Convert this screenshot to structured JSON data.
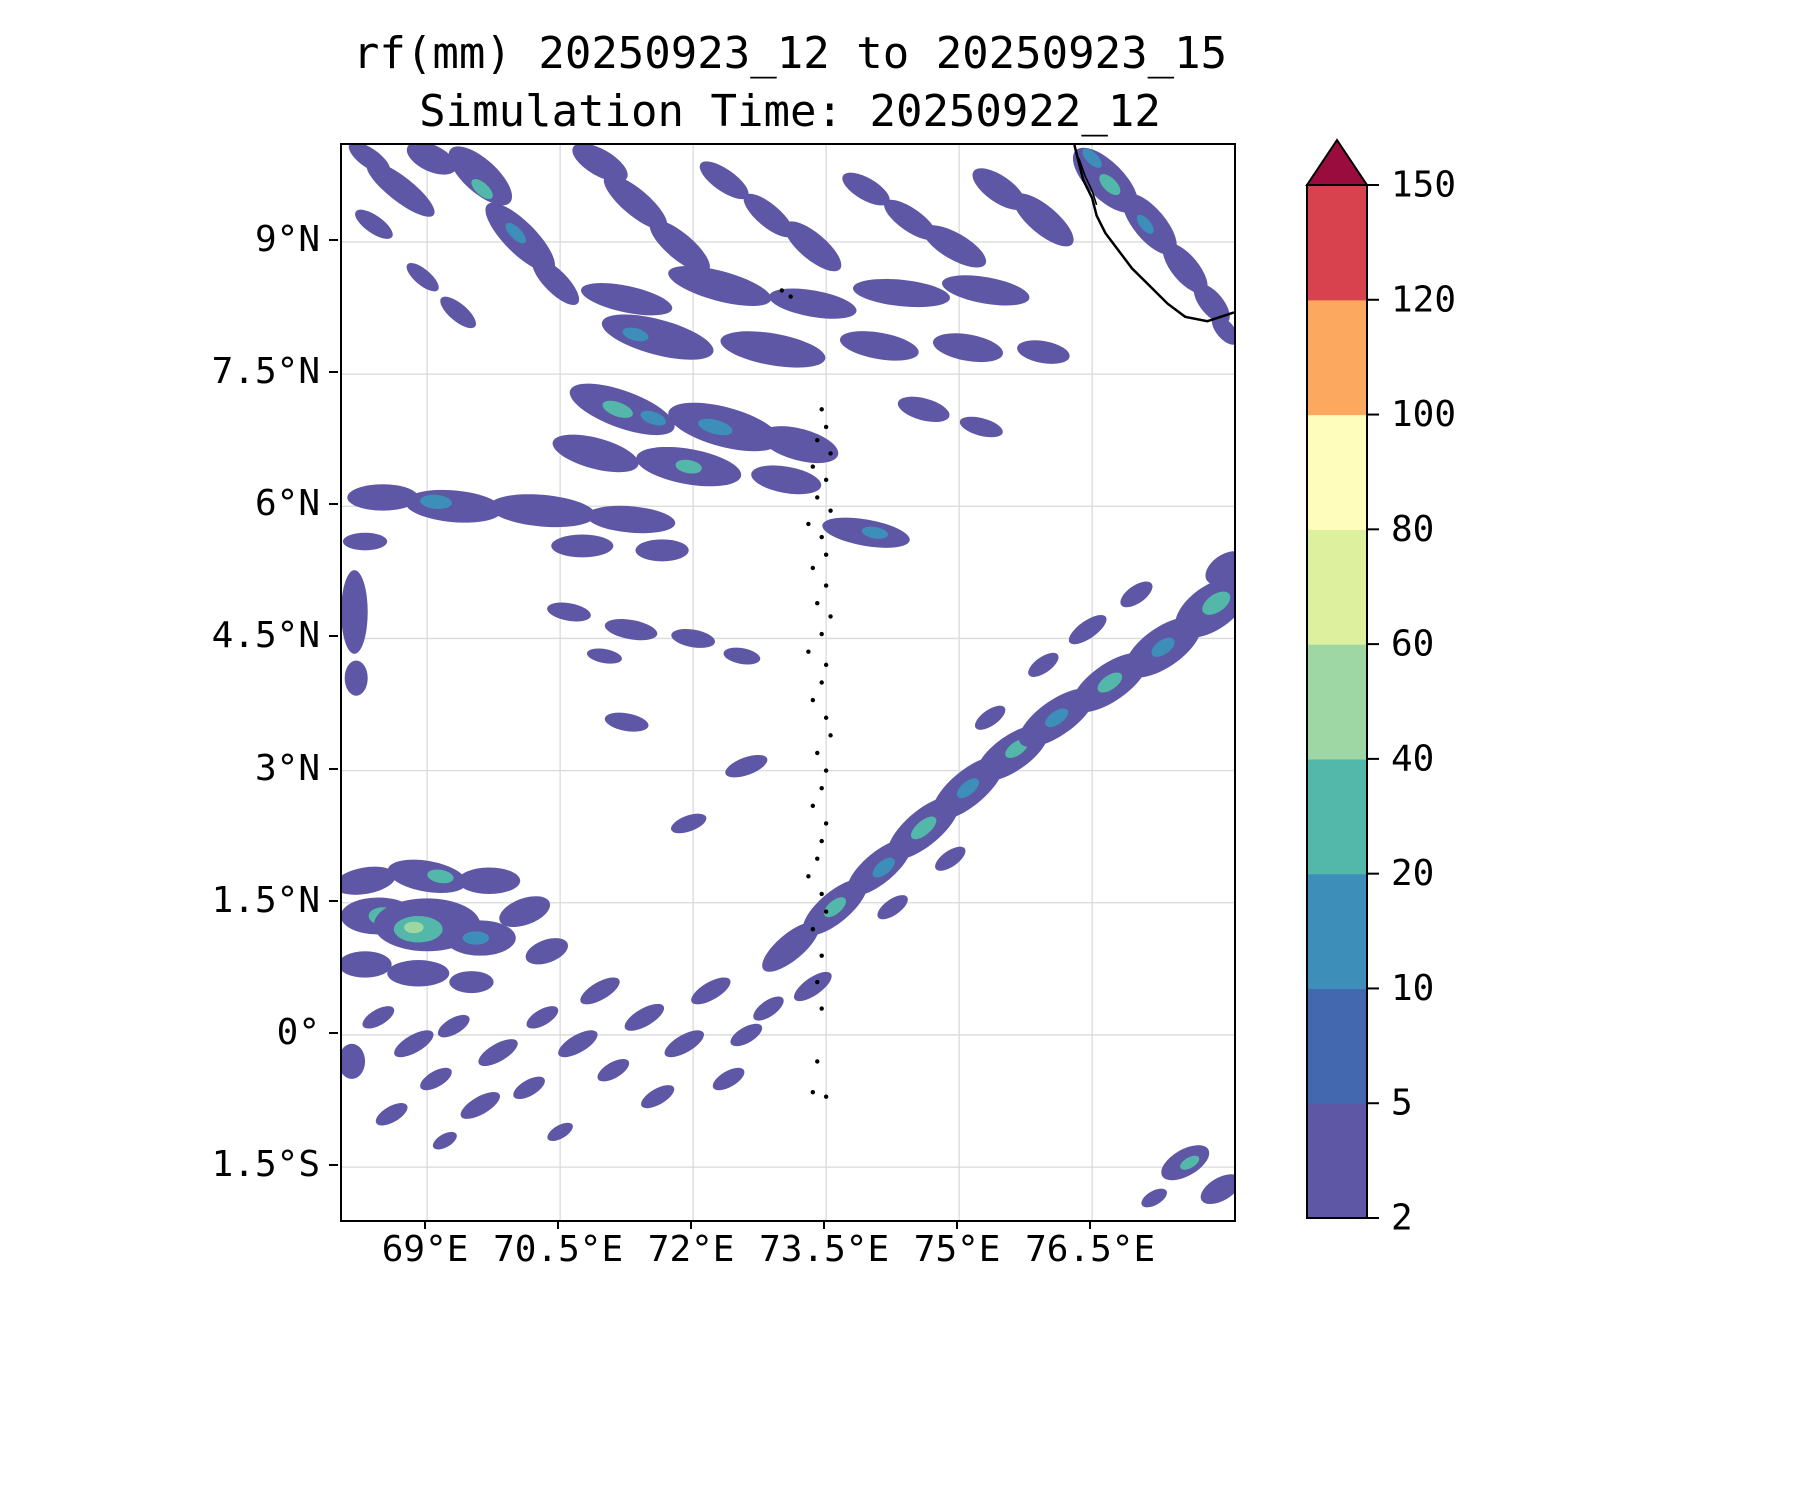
{
  "chart_data": {
    "type": "heatmap",
    "title": "rf(mm) 20250923_12 to 20250923_15",
    "subtitle": "Simulation Time: 20250922_12",
    "variable": "rf",
    "units": "mm",
    "xlabel": "",
    "ylabel": "",
    "xlim": [
      68.04,
      78.1
    ],
    "ylim": [
      -2.1,
      10.1
    ],
    "grid": true,
    "grid_color": "#dadada",
    "frame_color": "#000000",
    "coastline_color": "#000000",
    "x_ticks": [
      {
        "value": 69.0,
        "label": "69°E"
      },
      {
        "value": 70.5,
        "label": "70.5°E"
      },
      {
        "value": 72.0,
        "label": "72°E"
      },
      {
        "value": 73.5,
        "label": "73.5°E"
      },
      {
        "value": 75.0,
        "label": "75°E"
      },
      {
        "value": 76.5,
        "label": "76.5°E"
      }
    ],
    "y_ticks": [
      {
        "value": 9.0,
        "label": "9°N"
      },
      {
        "value": 7.5,
        "label": "7.5°N"
      },
      {
        "value": 6.0,
        "label": "6°N"
      },
      {
        "value": 4.5,
        "label": "4.5°N"
      },
      {
        "value": 3.0,
        "label": "3°N"
      },
      {
        "value": 1.5,
        "label": "1.5°N"
      },
      {
        "value": 0.0,
        "label": "0°"
      },
      {
        "value": -1.5,
        "label": "1.5°S"
      }
    ],
    "colorbar": {
      "levels": [
        2,
        5,
        10,
        20,
        40,
        60,
        80,
        100,
        120,
        150
      ],
      "tick_labels": [
        "2",
        "5",
        "10",
        "20",
        "40",
        "60",
        "80",
        "100",
        "120",
        "150"
      ],
      "colors": [
        "#5e57a6",
        "#4468af",
        "#3d8fba",
        "#53b8a9",
        "#9ed7a4",
        "#dcf09d",
        "#fefdbc",
        "#fca85f",
        "#d8424e"
      ],
      "extend_max_color": "#9b0c3e",
      "orientation": "vertical"
    },
    "coastline": [
      [
        76.3,
        10.1
      ],
      [
        76.35,
        9.9
      ],
      [
        76.4,
        9.7
      ],
      [
        76.5,
        9.5
      ],
      [
        76.55,
        9.3
      ],
      [
        76.65,
        9.1
      ],
      [
        76.8,
        8.9
      ],
      [
        76.95,
        8.7
      ],
      [
        77.15,
        8.5
      ],
      [
        77.35,
        8.3
      ],
      [
        77.55,
        8.15
      ],
      [
        77.8,
        8.1
      ],
      [
        78.1,
        8.2
      ]
    ],
    "backwater": [
      [
        76.35,
        9.95
      ],
      [
        76.42,
        9.75
      ],
      [
        76.5,
        9.58
      ],
      [
        76.55,
        9.42
      ]
    ],
    "islands": [
      [
        73.45,
        7.1
      ],
      [
        73.5,
        6.9
      ],
      [
        73.4,
        6.75
      ],
      [
        73.55,
        6.6
      ],
      [
        73.35,
        6.45
      ],
      [
        73.5,
        6.3
      ],
      [
        73.4,
        6.1
      ],
      [
        73.55,
        5.95
      ],
      [
        73.3,
        5.8
      ],
      [
        73.45,
        5.65
      ],
      [
        73.5,
        5.45
      ],
      [
        73.35,
        5.3
      ],
      [
        73.5,
        5.1
      ],
      [
        73.4,
        4.9
      ],
      [
        73.55,
        4.75
      ],
      [
        73.45,
        4.55
      ],
      [
        73.3,
        4.35
      ],
      [
        73.5,
        4.2
      ],
      [
        73.45,
        4.0
      ],
      [
        73.35,
        3.8
      ],
      [
        73.5,
        3.6
      ],
      [
        73.55,
        3.4
      ],
      [
        73.4,
        3.2
      ],
      [
        73.5,
        3.0
      ],
      [
        73.45,
        2.8
      ],
      [
        73.35,
        2.6
      ],
      [
        73.5,
        2.4
      ],
      [
        73.45,
        2.2
      ],
      [
        73.4,
        2.0
      ],
      [
        73.3,
        1.8
      ],
      [
        73.45,
        1.6
      ],
      [
        73.5,
        1.4
      ],
      [
        73.35,
        1.2
      ],
      [
        73.45,
        0.9
      ],
      [
        73.4,
        0.6
      ],
      [
        73.45,
        0.3
      ],
      [
        73.4,
        -0.3
      ],
      [
        73.35,
        -0.65
      ],
      [
        73.5,
        -0.7
      ],
      [
        73.1,
        8.38
      ],
      [
        73.0,
        8.45
      ]
    ],
    "cell_format": [
      "lon",
      "lat",
      "width_deg",
      "height_deg",
      "rotation_deg",
      "color_level_index"
    ],
    "rain_cells": [
      [
        68.35,
        9.95,
        0.55,
        0.22,
        35,
        0
      ],
      [
        68.7,
        9.6,
        0.95,
        0.28,
        38,
        0
      ],
      [
        68.4,
        9.2,
        0.5,
        0.2,
        35,
        0
      ],
      [
        69.05,
        9.95,
        0.6,
        0.3,
        25,
        0
      ],
      [
        69.6,
        9.75,
        0.9,
        0.38,
        42,
        0
      ],
      [
        69.62,
        9.6,
        0.3,
        0.14,
        42,
        3
      ],
      [
        70.05,
        9.05,
        1.05,
        0.36,
        45,
        0
      ],
      [
        70.0,
        9.1,
        0.3,
        0.13,
        45,
        2
      ],
      [
        70.45,
        8.55,
        0.7,
        0.26,
        45,
        0
      ],
      [
        68.95,
        8.6,
        0.45,
        0.18,
        40,
        0
      ],
      [
        69.35,
        8.2,
        0.5,
        0.2,
        40,
        0
      ],
      [
        70.95,
        9.9,
        0.7,
        0.3,
        30,
        0
      ],
      [
        71.35,
        9.45,
        0.9,
        0.3,
        40,
        0
      ],
      [
        71.85,
        8.95,
        0.85,
        0.3,
        40,
        0
      ],
      [
        72.35,
        9.7,
        0.65,
        0.25,
        35,
        0
      ],
      [
        72.85,
        9.3,
        0.7,
        0.26,
        40,
        0
      ],
      [
        73.35,
        8.95,
        0.8,
        0.3,
        40,
        0
      ],
      [
        73.95,
        9.6,
        0.6,
        0.25,
        30,
        0
      ],
      [
        74.45,
        9.25,
        0.7,
        0.26,
        35,
        0
      ],
      [
        74.95,
        8.95,
        0.8,
        0.3,
        30,
        0
      ],
      [
        75.45,
        9.6,
        0.7,
        0.3,
        35,
        0
      ],
      [
        75.95,
        9.25,
        0.85,
        0.32,
        40,
        0
      ],
      [
        76.65,
        9.7,
        0.95,
        0.42,
        45,
        0
      ],
      [
        76.7,
        9.65,
        0.3,
        0.15,
        45,
        3
      ],
      [
        76.5,
        9.95,
        0.28,
        0.13,
        45,
        2
      ],
      [
        77.15,
        9.2,
        0.85,
        0.36,
        50,
        0
      ],
      [
        77.1,
        9.2,
        0.26,
        0.12,
        50,
        2
      ],
      [
        77.55,
        8.7,
        0.7,
        0.3,
        50,
        0
      ],
      [
        77.85,
        8.3,
        0.55,
        0.26,
        50,
        0
      ],
      [
        78.0,
        8.0,
        0.4,
        0.2,
        50,
        0
      ],
      [
        71.25,
        8.35,
        1.05,
        0.3,
        12,
        0
      ],
      [
        72.3,
        8.5,
        1.2,
        0.34,
        15,
        0
      ],
      [
        73.35,
        8.3,
        1.0,
        0.3,
        10,
        0
      ],
      [
        74.35,
        8.42,
        1.1,
        0.3,
        6,
        0
      ],
      [
        75.3,
        8.45,
        1.0,
        0.3,
        10,
        0
      ],
      [
        71.6,
        7.92,
        1.3,
        0.4,
        15,
        0
      ],
      [
        71.35,
        7.95,
        0.3,
        0.14,
        15,
        2
      ],
      [
        72.9,
        7.78,
        1.2,
        0.36,
        10,
        0
      ],
      [
        74.1,
        7.82,
        0.9,
        0.3,
        10,
        0
      ],
      [
        75.1,
        7.8,
        0.8,
        0.3,
        10,
        0
      ],
      [
        75.95,
        7.75,
        0.6,
        0.25,
        10,
        0
      ],
      [
        71.2,
        7.1,
        1.25,
        0.42,
        20,
        0
      ],
      [
        71.15,
        7.1,
        0.36,
        0.16,
        20,
        3
      ],
      [
        71.55,
        7.0,
        0.3,
        0.14,
        20,
        2
      ],
      [
        72.35,
        6.9,
        1.3,
        0.45,
        15,
        0
      ],
      [
        72.25,
        6.9,
        0.4,
        0.16,
        15,
        2
      ],
      [
        73.2,
        6.7,
        0.9,
        0.36,
        15,
        0
      ],
      [
        70.9,
        6.6,
        1.0,
        0.35,
        15,
        0
      ],
      [
        71.95,
        6.45,
        1.2,
        0.4,
        10,
        0
      ],
      [
        71.95,
        6.45,
        0.3,
        0.15,
        10,
        3
      ],
      [
        73.05,
        6.3,
        0.8,
        0.3,
        10,
        0
      ],
      [
        74.6,
        7.1,
        0.6,
        0.25,
        15,
        0
      ],
      [
        75.25,
        6.9,
        0.5,
        0.2,
        15,
        0
      ],
      [
        68.5,
        6.1,
        0.8,
        0.3,
        0,
        0
      ],
      [
        69.3,
        6.0,
        1.1,
        0.36,
        5,
        0
      ],
      [
        69.1,
        6.05,
        0.36,
        0.16,
        5,
        2
      ],
      [
        70.3,
        5.95,
        1.2,
        0.36,
        5,
        0
      ],
      [
        71.3,
        5.85,
        1.0,
        0.3,
        5,
        0
      ],
      [
        68.3,
        5.6,
        0.5,
        0.2,
        0,
        0
      ],
      [
        70.75,
        5.55,
        0.7,
        0.26,
        0,
        0
      ],
      [
        71.65,
        5.5,
        0.6,
        0.25,
        0,
        0
      ],
      [
        73.95,
        5.7,
        1.0,
        0.3,
        10,
        0
      ],
      [
        74.05,
        5.7,
        0.3,
        0.13,
        10,
        2
      ],
      [
        68.18,
        4.8,
        0.3,
        0.95,
        0,
        0
      ],
      [
        68.2,
        4.05,
        0.26,
        0.4,
        0,
        0
      ],
      [
        70.6,
        4.8,
        0.5,
        0.2,
        10,
        0
      ],
      [
        71.3,
        4.6,
        0.6,
        0.22,
        10,
        0
      ],
      [
        72.0,
        4.5,
        0.5,
        0.2,
        10,
        0
      ],
      [
        72.55,
        4.3,
        0.42,
        0.18,
        10,
        0
      ],
      [
        71.0,
        4.3,
        0.4,
        0.16,
        10,
        0
      ],
      [
        71.25,
        3.55,
        0.5,
        0.2,
        10,
        0
      ],
      [
        73.1,
        1.0,
        0.8,
        0.3,
        -40,
        0
      ],
      [
        73.6,
        1.45,
        0.9,
        0.35,
        -40,
        0
      ],
      [
        73.6,
        1.45,
        0.3,
        0.15,
        -40,
        3
      ],
      [
        74.1,
        1.9,
        0.9,
        0.35,
        -40,
        0
      ],
      [
        74.15,
        1.9,
        0.3,
        0.15,
        -40,
        2
      ],
      [
        74.6,
        2.35,
        1.0,
        0.4,
        -40,
        0
      ],
      [
        74.6,
        2.35,
        0.35,
        0.16,
        -40,
        3
      ],
      [
        75.1,
        2.8,
        1.0,
        0.4,
        -40,
        0
      ],
      [
        75.1,
        2.8,
        0.3,
        0.15,
        -40,
        2
      ],
      [
        75.6,
        3.2,
        0.95,
        0.4,
        -35,
        0
      ],
      [
        75.65,
        3.25,
        0.3,
        0.15,
        -35,
        3
      ],
      [
        76.1,
        3.6,
        1.0,
        0.4,
        -35,
        0
      ],
      [
        76.1,
        3.6,
        0.3,
        0.15,
        -35,
        2
      ],
      [
        76.7,
        4.0,
        1.0,
        0.42,
        -35,
        0
      ],
      [
        76.7,
        4.0,
        0.32,
        0.16,
        -35,
        3
      ],
      [
        77.3,
        4.4,
        1.0,
        0.45,
        -35,
        0
      ],
      [
        77.3,
        4.4,
        0.3,
        0.16,
        -35,
        2
      ],
      [
        77.85,
        4.85,
        0.95,
        0.5,
        -35,
        0
      ],
      [
        77.9,
        4.9,
        0.36,
        0.2,
        -35,
        3
      ],
      [
        78.0,
        5.3,
        0.5,
        0.3,
        -35,
        0
      ],
      [
        75.35,
        3.6,
        0.4,
        0.18,
        -35,
        0
      ],
      [
        75.95,
        4.2,
        0.4,
        0.18,
        -35,
        0
      ],
      [
        76.45,
        4.6,
        0.5,
        0.2,
        -35,
        0
      ],
      [
        77.0,
        5.0,
        0.42,
        0.2,
        -35,
        0
      ],
      [
        74.25,
        1.45,
        0.4,
        0.18,
        -35,
        0
      ],
      [
        74.9,
        2.0,
        0.4,
        0.18,
        -35,
        0
      ],
      [
        73.35,
        0.55,
        0.5,
        0.2,
        -35,
        0
      ],
      [
        72.85,
        0.3,
        0.4,
        0.18,
        -35,
        0
      ],
      [
        72.6,
        3.05,
        0.5,
        0.2,
        -20,
        0
      ],
      [
        71.95,
        2.4,
        0.42,
        0.18,
        -20,
        0
      ],
      [
        68.3,
        1.75,
        0.7,
        0.3,
        -10,
        0
      ],
      [
        69.0,
        1.8,
        0.9,
        0.35,
        10,
        0
      ],
      [
        69.15,
        1.8,
        0.3,
        0.15,
        10,
        3
      ],
      [
        69.7,
        1.75,
        0.7,
        0.3,
        0,
        0
      ],
      [
        68.45,
        1.35,
        0.85,
        0.42,
        0,
        0
      ],
      [
        68.5,
        1.35,
        0.32,
        0.2,
        0,
        3
      ],
      [
        69.0,
        1.25,
        1.2,
        0.6,
        0,
        0
      ],
      [
        68.9,
        1.2,
        0.55,
        0.3,
        0,
        3
      ],
      [
        68.85,
        1.22,
        0.22,
        0.13,
        0,
        4
      ],
      [
        69.6,
        1.1,
        0.8,
        0.4,
        0,
        0
      ],
      [
        69.55,
        1.1,
        0.3,
        0.15,
        0,
        2
      ],
      [
        70.1,
        1.4,
        0.6,
        0.3,
        -20,
        0
      ],
      [
        70.35,
        0.95,
        0.5,
        0.26,
        -20,
        0
      ],
      [
        68.3,
        0.8,
        0.6,
        0.3,
        0,
        0
      ],
      [
        68.9,
        0.7,
        0.7,
        0.3,
        0,
        0
      ],
      [
        69.5,
        0.6,
        0.5,
        0.25,
        0,
        0
      ],
      [
        68.45,
        0.2,
        0.4,
        0.18,
        -30,
        0
      ],
      [
        68.85,
        -0.1,
        0.5,
        0.2,
        -30,
        0
      ],
      [
        69.3,
        0.1,
        0.4,
        0.18,
        -30,
        0
      ],
      [
        69.8,
        -0.2,
        0.5,
        0.2,
        -30,
        0
      ],
      [
        70.3,
        0.2,
        0.4,
        0.18,
        -30,
        0
      ],
      [
        70.7,
        -0.1,
        0.5,
        0.2,
        -30,
        0
      ],
      [
        69.1,
        -0.5,
        0.4,
        0.18,
        -30,
        0
      ],
      [
        69.6,
        -0.8,
        0.5,
        0.2,
        -30,
        0
      ],
      [
        70.15,
        -0.6,
        0.4,
        0.18,
        -30,
        0
      ],
      [
        68.6,
        -0.9,
        0.4,
        0.18,
        -30,
        0
      ],
      [
        70.95,
        0.5,
        0.5,
        0.2,
        -30,
        0
      ],
      [
        71.45,
        0.2,
        0.5,
        0.2,
        -30,
        0
      ],
      [
        71.9,
        -0.1,
        0.5,
        0.2,
        -30,
        0
      ],
      [
        71.1,
        -0.4,
        0.4,
        0.18,
        -30,
        0
      ],
      [
        71.6,
        -0.7,
        0.42,
        0.18,
        -30,
        0
      ],
      [
        72.2,
        0.5,
        0.5,
        0.2,
        -30,
        0
      ],
      [
        72.6,
        0.0,
        0.4,
        0.18,
        -30,
        0
      ],
      [
        72.4,
        -0.5,
        0.4,
        0.18,
        -30,
        0
      ],
      [
        70.5,
        -1.1,
        0.32,
        0.15,
        -30,
        0
      ],
      [
        69.2,
        -1.2,
        0.3,
        0.15,
        -30,
        0
      ],
      [
        68.15,
        -0.3,
        0.3,
        0.4,
        0,
        0
      ],
      [
        77.55,
        -1.45,
        0.6,
        0.3,
        -30,
        0
      ],
      [
        77.6,
        -1.45,
        0.24,
        0.12,
        -30,
        3
      ],
      [
        77.95,
        -1.75,
        0.5,
        0.26,
        -30,
        0
      ],
      [
        77.2,
        -1.85,
        0.32,
        0.16,
        -30,
        0
      ]
    ]
  }
}
